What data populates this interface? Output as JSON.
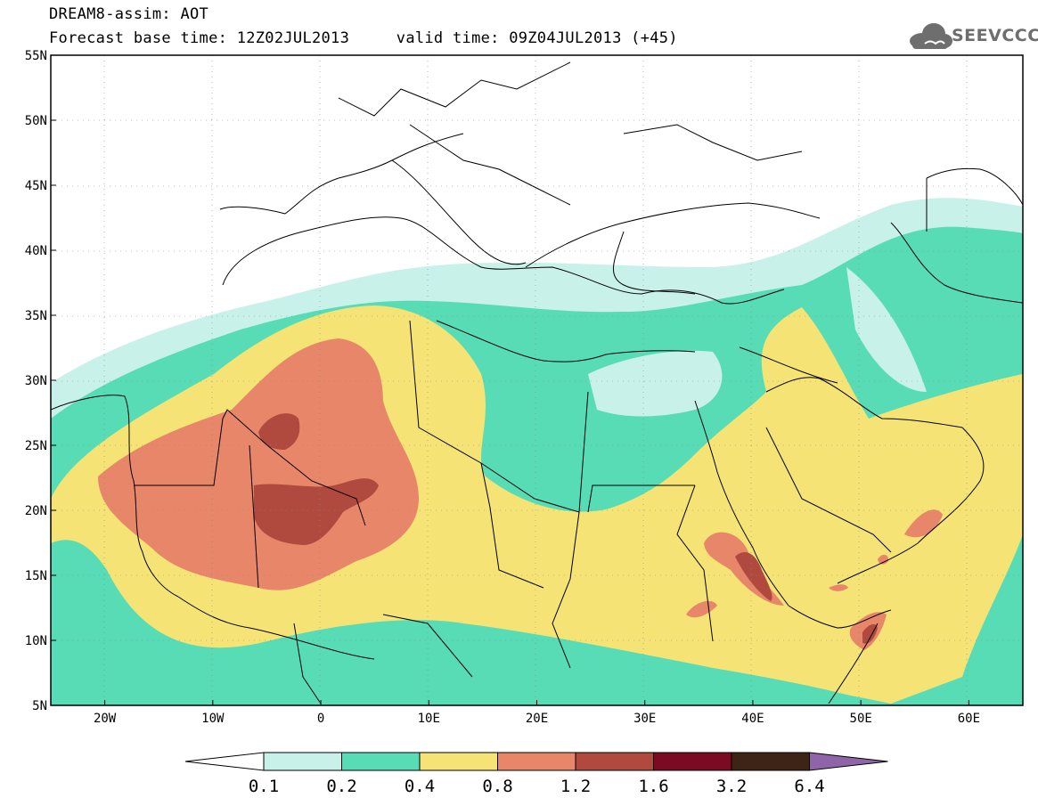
{
  "header": {
    "line1": "DREAM8-assim: AOT",
    "line2": "Forecast base time: 12Z02JUL2013     valid time: 09Z04JUL2013 (+45)"
  },
  "logo": {
    "text": "SEEVCCC",
    "icon": "cloud-icon"
  },
  "map": {
    "lon_range": [
      -25,
      65
    ],
    "lat_range": [
      5,
      55
    ],
    "lat_ticks": [
      {
        "value": 55,
        "label": "55N"
      },
      {
        "value": 50,
        "label": "50N"
      },
      {
        "value": 45,
        "label": "45N"
      },
      {
        "value": 40,
        "label": "40N"
      },
      {
        "value": 35,
        "label": "35N"
      },
      {
        "value": 30,
        "label": "30N"
      },
      {
        "value": 25,
        "label": "25N"
      },
      {
        "value": 20,
        "label": "20N"
      },
      {
        "value": 15,
        "label": "15N"
      },
      {
        "value": 10,
        "label": "10N"
      },
      {
        "value": 5,
        "label": "5N"
      }
    ],
    "lon_ticks": [
      {
        "value": -20,
        "label": "20W"
      },
      {
        "value": -10,
        "label": "10W"
      },
      {
        "value": 0,
        "label": "0"
      },
      {
        "value": 10,
        "label": "10E"
      },
      {
        "value": 20,
        "label": "20E"
      },
      {
        "value": 30,
        "label": "30E"
      },
      {
        "value": 40,
        "label": "40E"
      },
      {
        "value": 50,
        "label": "50E"
      },
      {
        "value": 60,
        "label": "60E"
      }
    ]
  },
  "colorbar": {
    "colors": [
      "#ffffff",
      "#c8f1ea",
      "#58dcb6",
      "#f5e375",
      "#e8866a",
      "#b14a3e",
      "#7a0b23",
      "#3d2414",
      "#8f64a8"
    ],
    "labels": [
      "0.1",
      "0.2",
      "0.4",
      "0.8",
      "1.2",
      "1.6",
      "3.2",
      "6.4"
    ]
  }
}
